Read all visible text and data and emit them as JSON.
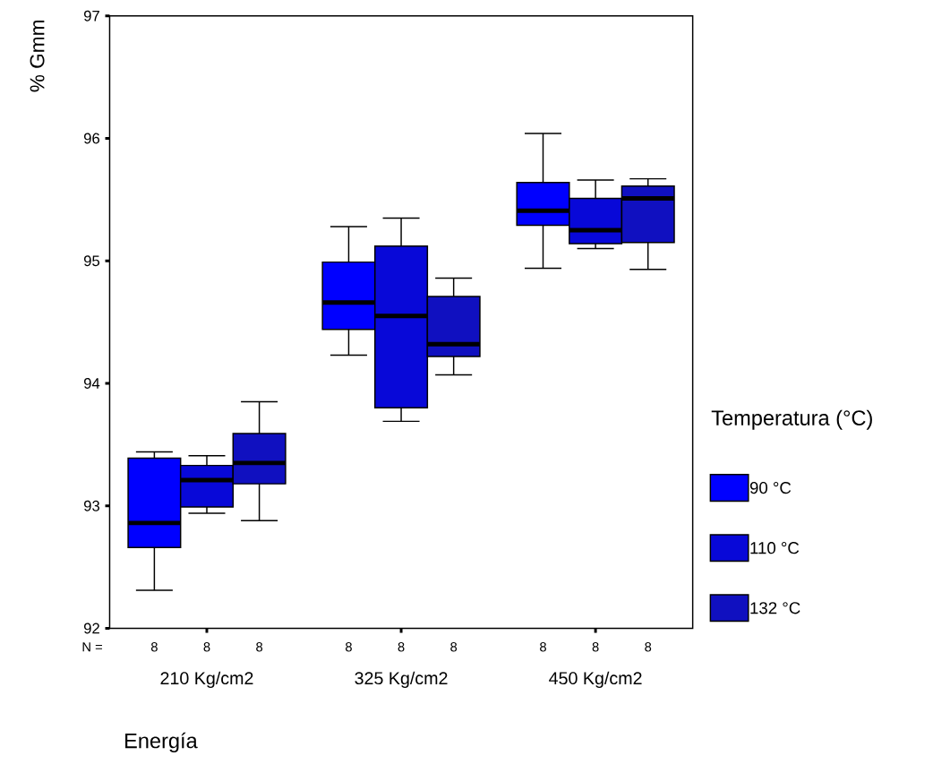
{
  "chart_data": {
    "type": "box",
    "xlabel": "Energía",
    "ylabel": "% Gmm",
    "legend_title": "Temperatura (°C)",
    "legend": "right",
    "categories": [
      "210 Kg/cm2",
      "325 Kg/cm2",
      "450 Kg/cm2"
    ],
    "ylim": [
      92,
      97
    ],
    "yticks": [
      92,
      93,
      94,
      95,
      96,
      97
    ],
    "series": [
      {
        "name": "90 °C",
        "color": "#0000ff",
        "boxes": [
          {
            "low": 92.31,
            "q1": 92.66,
            "median": 92.86,
            "q3": 93.39,
            "high": 93.44
          },
          {
            "low": 94.23,
            "q1": 94.44,
            "median": 94.66,
            "q3": 94.99,
            "high": 95.28
          },
          {
            "low": 94.94,
            "q1": 95.29,
            "median": 95.41,
            "q3": 95.64,
            "high": 96.04
          }
        ]
      },
      {
        "name": "110 °C",
        "color": "#0808d8",
        "boxes": [
          {
            "low": 92.94,
            "q1": 92.99,
            "median": 93.21,
            "q3": 93.33,
            "high": 93.41
          },
          {
            "low": 93.69,
            "q1": 93.8,
            "median": 94.55,
            "q3": 95.12,
            "high": 95.35
          },
          {
            "low": 95.1,
            "q1": 95.14,
            "median": 95.25,
            "q3": 95.51,
            "high": 95.66
          }
        ]
      },
      {
        "name": "132 °C",
        "color": "#1010c0",
        "boxes": [
          {
            "low": 92.88,
            "q1": 93.18,
            "median": 93.35,
            "q3": 93.59,
            "high": 93.85
          },
          {
            "low": 94.07,
            "q1": 94.22,
            "median": 94.32,
            "q3": 94.71,
            "high": 94.86
          },
          {
            "low": 94.93,
            "q1": 95.15,
            "median": 95.51,
            "q3": 95.61,
            "high": 95.67
          }
        ]
      }
    ],
    "annotations": [
      "N =",
      "8",
      "8",
      "8",
      "8",
      "8",
      "8",
      "8",
      "8",
      "8"
    ]
  }
}
